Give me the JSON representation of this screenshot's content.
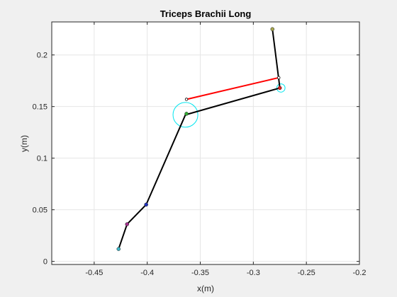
{
  "chart_data": {
    "type": "line",
    "title": "Triceps Brachii Long",
    "xlabel": "x(m)",
    "ylabel": "y(m)",
    "xlim": [
      -0.49,
      -0.2
    ],
    "ylim": [
      -0.003,
      0.232
    ],
    "xticks": [
      -0.45,
      -0.4,
      -0.35,
      -0.3,
      -0.25,
      -0.2
    ],
    "xtick_labels": [
      "-0.45",
      "-0.4",
      "-0.35",
      "-0.3",
      "-0.25",
      "-0.2"
    ],
    "yticks": [
      0,
      0.05,
      0.1,
      0.15,
      0.2
    ],
    "ytick_labels": [
      "0",
      "0.05",
      "0.1",
      "0.15",
      "0.2"
    ],
    "grid": true,
    "background": "#ffffff",
    "figure_background": "#f0f0f0",
    "series": [
      {
        "role": "segments",
        "color": "#000000",
        "x": [
          -0.427,
          -0.419,
          -0.401,
          -0.364,
          -0.275,
          -0.282
        ],
        "y": [
          0.012,
          0.036,
          0.055,
          0.142,
          0.168,
          0.225
        ]
      },
      {
        "role": "muscle",
        "color": "#ff0000",
        "x": [
          -0.363,
          -0.276
        ],
        "y": [
          0.157,
          0.178
        ]
      }
    ],
    "markers": [
      {
        "x": -0.427,
        "y": 0.012,
        "color": "#3fb8c8"
      },
      {
        "x": -0.419,
        "y": 0.036,
        "color": "#a0308a"
      },
      {
        "x": -0.401,
        "y": 0.055,
        "color": "#2233bb"
      },
      {
        "x": -0.363,
        "y": 0.143,
        "color": "#33aa33"
      },
      {
        "x": -0.275,
        "y": 0.168,
        "color": "#dd2222"
      },
      {
        "x": -0.282,
        "y": 0.225,
        "color": "#a5a550"
      }
    ],
    "muscle_points": [
      {
        "x": -0.363,
        "y": 0.157
      },
      {
        "x": -0.276,
        "y": 0.178
      }
    ],
    "joint_circles": [
      {
        "x": -0.364,
        "y": 0.142,
        "r": 0.012,
        "color": "#00e5ee"
      },
      {
        "x": -0.274,
        "y": 0.168,
        "r": 0.004,
        "color": "#00e5ee"
      }
    ]
  }
}
